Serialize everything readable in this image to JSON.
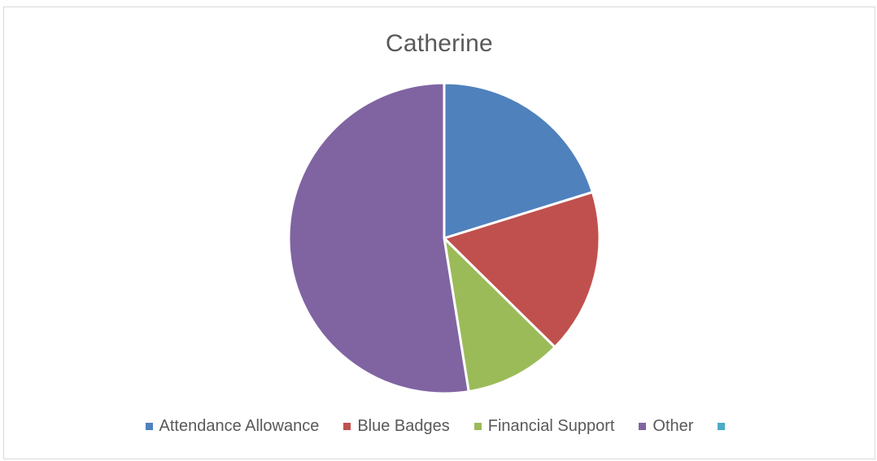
{
  "chart_data": {
    "type": "pie",
    "title": "Catherine",
    "categories": [
      "Attendance Allowance",
      "Blue Badges",
      "Financial Support",
      "Other",
      ""
    ],
    "values": [
      20,
      17,
      10,
      52,
      0
    ],
    "colors": [
      "#4f81bd",
      "#c0504d",
      "#9bbb59",
      "#8064a2",
      "#4bacc6"
    ],
    "legend_position": "bottom"
  }
}
